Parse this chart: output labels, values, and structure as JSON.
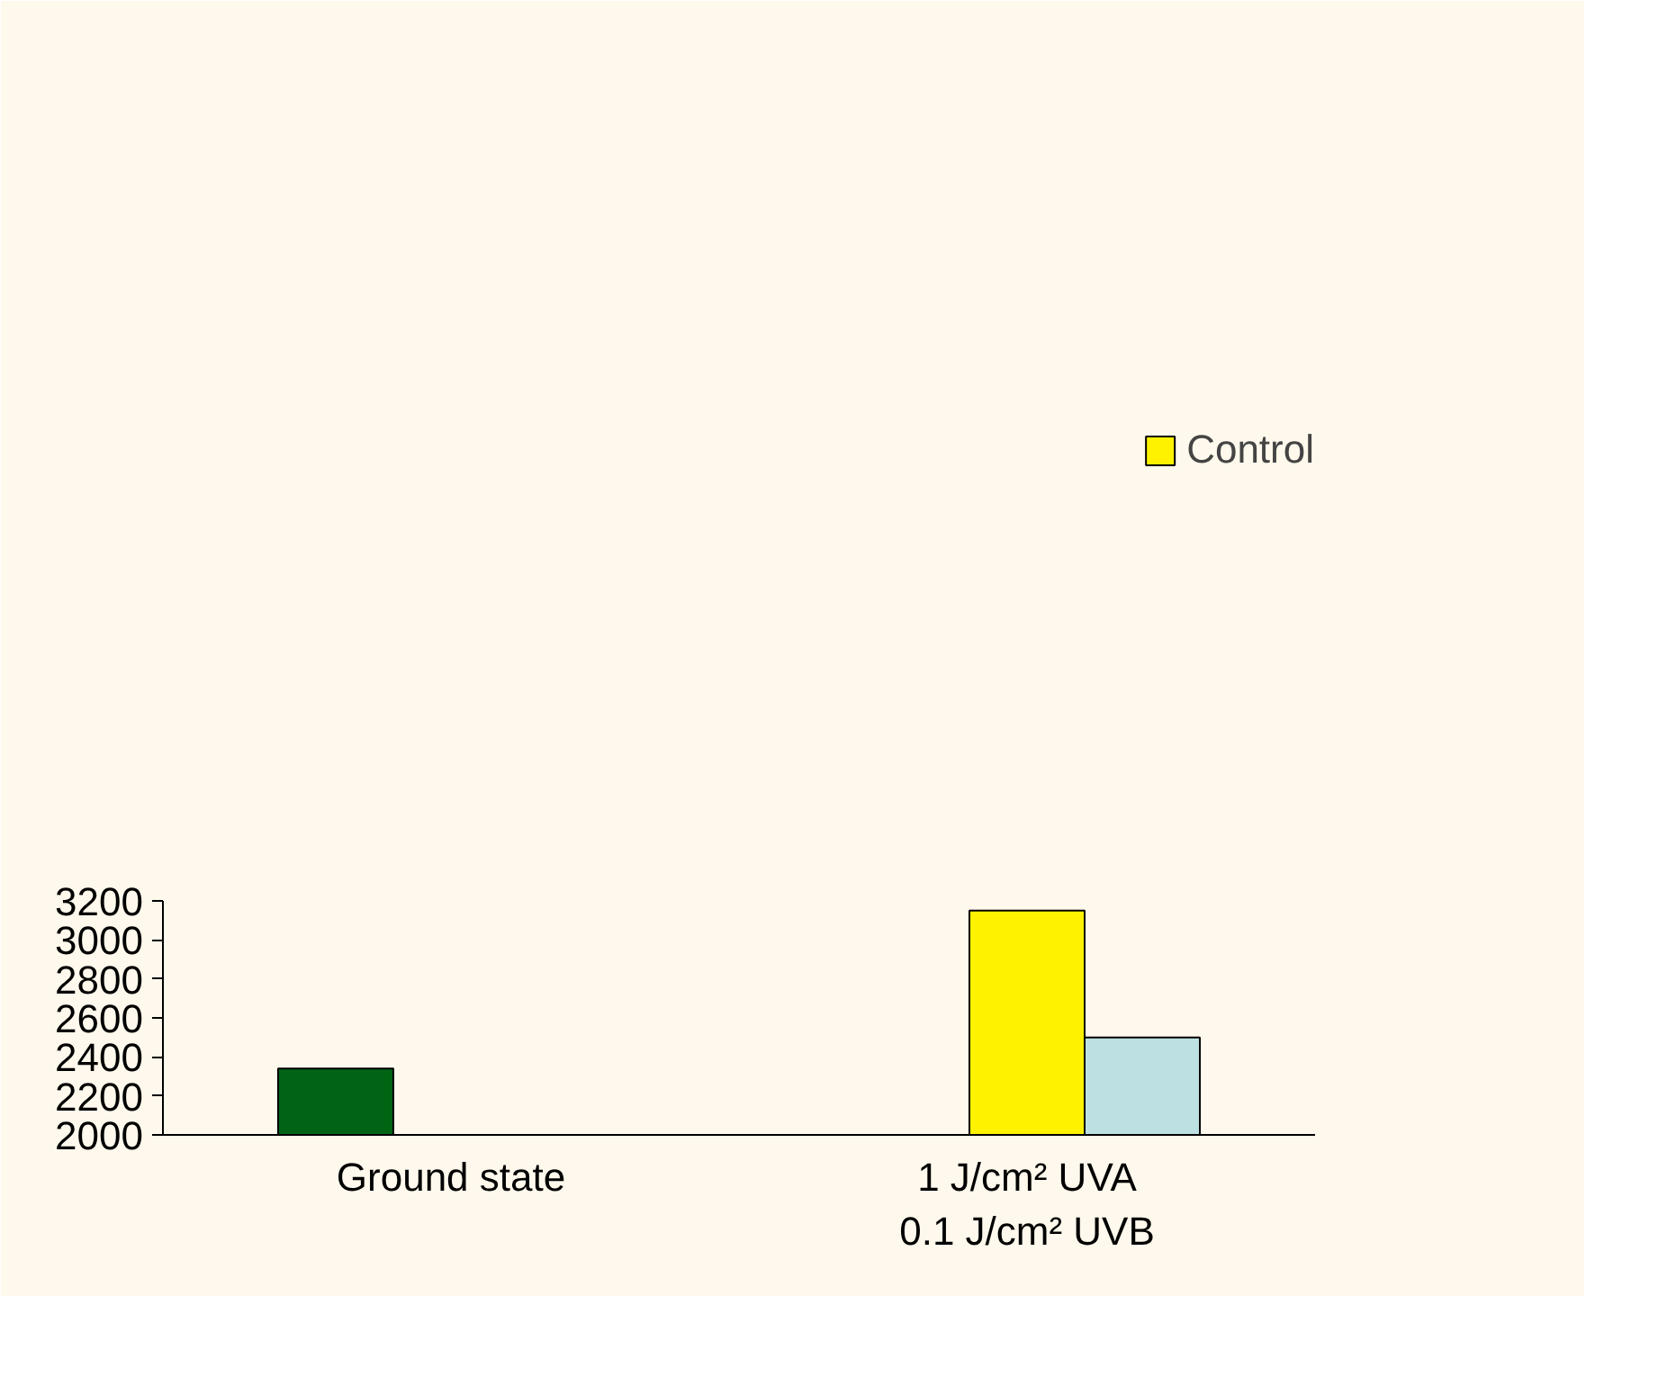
{
  "chart_data": {
    "type": "bar",
    "categories": [
      "Ground state",
      "1 J/cm² UVA\n0.1 J/cm² UVB"
    ],
    "series": [
      {
        "color": "#006414",
        "values": [
          2340,
          null
        ]
      },
      {
        "name": "Control",
        "color": "#fff200",
        "values": [
          null,
          3150
        ]
      },
      {
        "color": "#bde0e2",
        "values": [
          null,
          2500
        ]
      }
    ],
    "ylim": [
      2000,
      3200
    ],
    "yticks": [
      2000,
      2200,
      2400,
      2600,
      2800,
      3000,
      3200
    ],
    "grid": false,
    "legend": "top right"
  }
}
